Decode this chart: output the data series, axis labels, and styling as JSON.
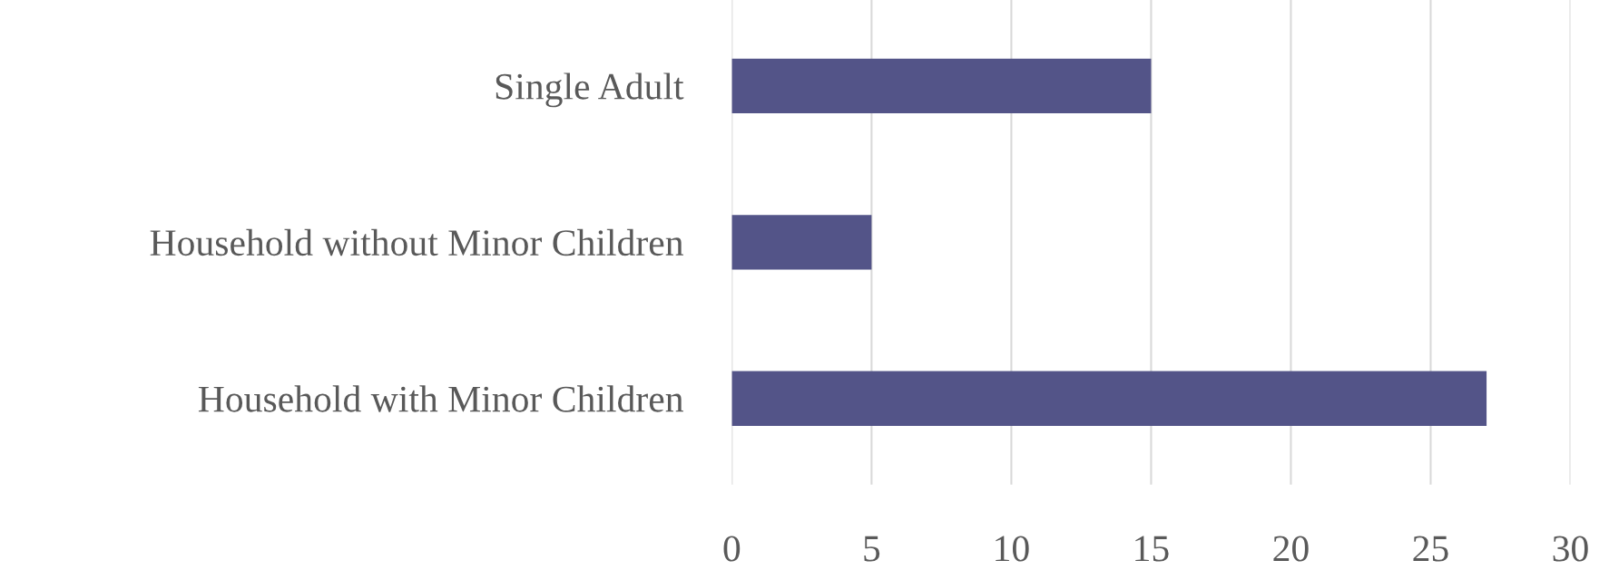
{
  "chart_data": {
    "type": "bar",
    "orientation": "horizontal",
    "categories": [
      "Single Adult",
      "Household without Minor Children",
      "Household with Minor Children"
    ],
    "values": [
      15,
      5,
      27
    ],
    "color": "#535488",
    "xlim": [
      0,
      30
    ],
    "xticks": [
      0,
      5,
      10,
      15,
      20,
      25,
      30
    ],
    "grid": "x"
  }
}
